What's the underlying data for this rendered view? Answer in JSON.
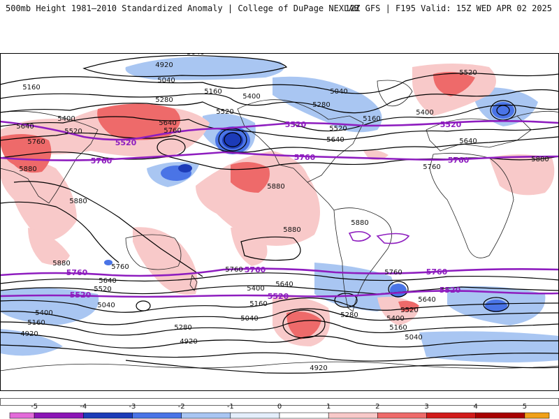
{
  "header": {
    "title": "500mb Height 1981–2010 Standardized Anomaly | College of DuPage NEXLAB",
    "run": "12Z GFS | F195 Valid: 15Z WED APR 02 2025"
  },
  "colorbar": {
    "ticks": [
      "-5",
      "-4",
      "-3",
      "-2",
      "-1",
      "0",
      "1",
      "2",
      "3",
      "4",
      "5"
    ],
    "bins": [
      {
        "from": -5.5,
        "to": -5,
        "color": "#e36bd9"
      },
      {
        "from": -5,
        "to": -4,
        "color": "#8a14b5"
      },
      {
        "from": -4,
        "to": -3,
        "color": "#1c3bb8"
      },
      {
        "from": -3,
        "to": -2,
        "color": "#4a74e6"
      },
      {
        "from": -2,
        "to": -1,
        "color": "#a9c6f2"
      },
      {
        "from": -1,
        "to": 0,
        "color": "#e4eefb"
      },
      {
        "from": 0,
        "to": 1,
        "color": "#ffffff"
      },
      {
        "from": 1,
        "to": 2,
        "color": "#f8c9c9"
      },
      {
        "from": 2,
        "to": 3,
        "color": "#ee6a6a"
      },
      {
        "from": 3,
        "to": 4,
        "color": "#d11a1a"
      },
      {
        "from": 4,
        "to": 5,
        "color": "#a80000"
      },
      {
        "from": 5,
        "to": 5.5,
        "color": "#f0a018"
      }
    ]
  },
  "map": {
    "highlight_contours": [
      "5520",
      "5760"
    ],
    "height_labels": [
      "5040",
      "4920",
      "5040",
      "5160",
      "5160",
      "5400",
      "5040",
      "5280",
      "5160",
      "5280",
      "5520",
      "5520",
      "5400",
      "5520",
      "5640",
      "5640",
      "5760",
      "5760",
      "5640",
      "5880",
      "5880",
      "5880",
      "5880",
      "5880",
      "5880",
      "5760",
      "5640",
      "5520",
      "5040",
      "5400",
      "5160",
      "4920",
      "5160",
      "5400",
      "5040",
      "5280",
      "4920",
      "5280",
      "5520",
      "5640",
      "5400",
      "5160",
      "5040",
      "4920",
      "5760",
      "5640",
      "5520",
      "5880",
      "5760",
      "5400",
      "5640",
      "5760"
    ],
    "purple_labels": [
      "5520",
      "5520",
      "5520",
      "5760",
      "5760",
      "5760",
      "5760",
      "5760",
      "5760",
      "5520",
      "5520",
      "5520"
    ]
  },
  "colors": {
    "highlight": "#8e1dbf",
    "contour": "#000000",
    "coast": "#222222"
  }
}
